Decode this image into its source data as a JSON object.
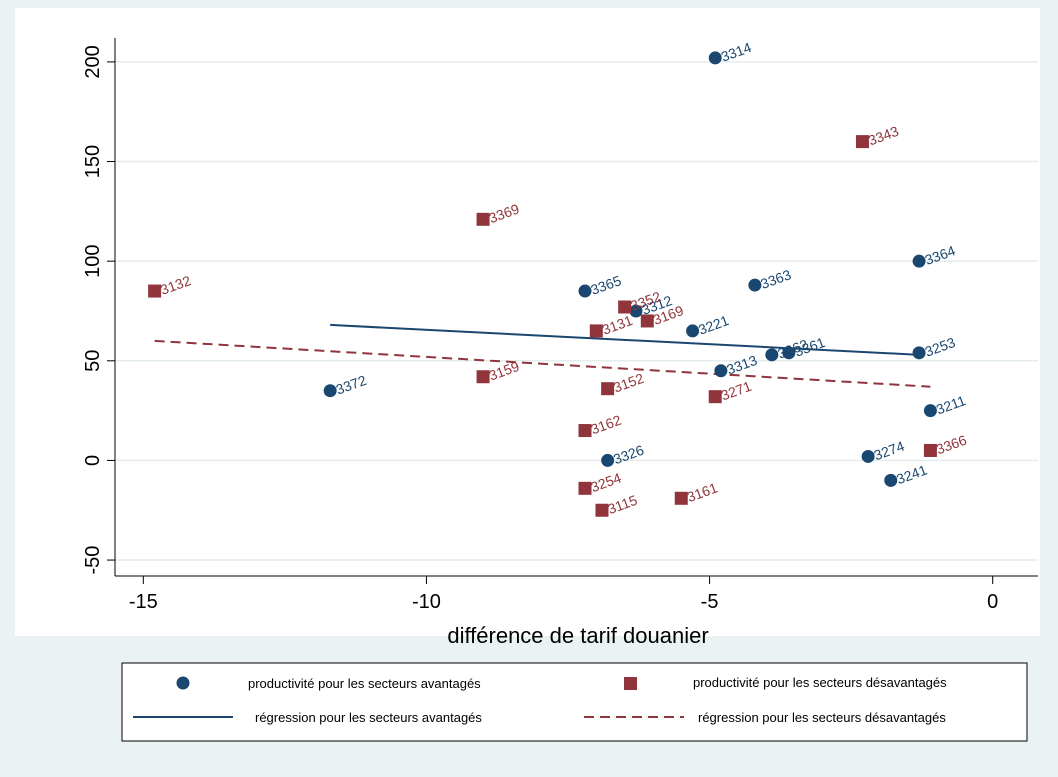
{
  "chart_data": {
    "type": "scatter",
    "xlabel": "différence de tarif douanier",
    "ylabel": "",
    "xlim": [
      -15.5,
      0.8
    ],
    "ylim": [
      -58,
      212
    ],
    "xticks": [
      -15,
      -10,
      -5,
      0
    ],
    "yticks": [
      -50,
      0,
      50,
      100,
      150,
      200
    ],
    "grid": "horizontal",
    "legend_position": "bottom",
    "colors": {
      "advantaged": "#1a476f",
      "disadvantaged": "#90353b",
      "background": "#eaf2f3",
      "plot_bg": "#ffffff",
      "grid": "#e4ecec"
    },
    "series": [
      {
        "name": "productivité pour les secteurs avantagés",
        "marker": "circle",
        "points": [
          {
            "label": "3314",
            "x": -4.9,
            "y": 202
          },
          {
            "label": "3364",
            "x": -1.3,
            "y": 100
          },
          {
            "label": "3363",
            "x": -4.2,
            "y": 88
          },
          {
            "label": "3365",
            "x": -7.2,
            "y": 85
          },
          {
            "label": "3312",
            "x": -6.3,
            "y": 75
          },
          {
            "label": "3221",
            "x": -5.3,
            "y": 65
          },
          {
            "label": "3362",
            "x": -3.9,
            "y": 53
          },
          {
            "label": "3361",
            "x": -3.6,
            "y": 54
          },
          {
            "label": "3253",
            "x": -1.3,
            "y": 54
          },
          {
            "label": "3313",
            "x": -4.8,
            "y": 45
          },
          {
            "label": "3372",
            "x": -11.7,
            "y": 35
          },
          {
            "label": "3211",
            "x": -1.1,
            "y": 25
          },
          {
            "label": "3274",
            "x": -2.2,
            "y": 2
          },
          {
            "label": "3326",
            "x": -6.8,
            "y": 0
          },
          {
            "label": "3241",
            "x": -1.8,
            "y": -10
          }
        ]
      },
      {
        "name": "productivité pour les secteurs désavantagés",
        "marker": "square",
        "points": [
          {
            "label": "3343",
            "x": -2.3,
            "y": 160
          },
          {
            "label": "3369",
            "x": -9.0,
            "y": 121
          },
          {
            "label": "3132",
            "x": -14.8,
            "y": 85
          },
          {
            "label": "3352",
            "x": -6.5,
            "y": 77
          },
          {
            "label": "3169",
            "x": -6.1,
            "y": 70
          },
          {
            "label": "3131",
            "x": -7.0,
            "y": 65
          },
          {
            "label": "3159",
            "x": -9.0,
            "y": 42
          },
          {
            "label": "3152",
            "x": -6.8,
            "y": 36
          },
          {
            "label": "3271",
            "x": -4.9,
            "y": 32
          },
          {
            "label": "3162",
            "x": -7.2,
            "y": 15
          },
          {
            "label": "3366",
            "x": -1.1,
            "y": 5
          },
          {
            "label": "3254",
            "x": -7.2,
            "y": -14
          },
          {
            "label": "3161",
            "x": -5.5,
            "y": -19
          },
          {
            "label": "3115",
            "x": -6.9,
            "y": -25
          }
        ]
      },
      {
        "name": "régression pour les secteurs avantagés",
        "style": "solid",
        "line": [
          {
            "x": -11.7,
            "y": 68
          },
          {
            "x": -1.3,
            "y": 53
          }
        ]
      },
      {
        "name": "régression pour les secteurs désavantagés",
        "style": "dashed",
        "line": [
          {
            "x": -14.8,
            "y": 60
          },
          {
            "x": -1.1,
            "y": 37
          }
        ]
      }
    ]
  }
}
